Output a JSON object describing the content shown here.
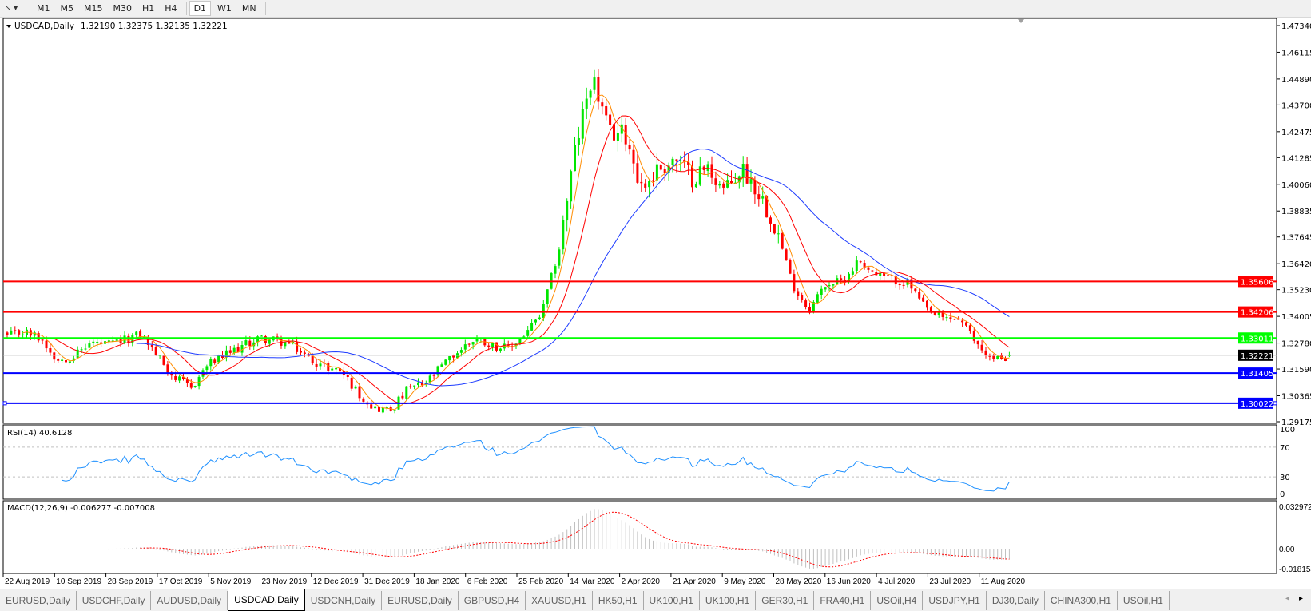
{
  "toolbar": {
    "timeframes": [
      "M1",
      "M5",
      "M15",
      "M30",
      "H1",
      "H4",
      "D1",
      "W1",
      "MN"
    ],
    "active": "D1",
    "icons": [
      "drawing-cursor-icon",
      "dropdown-arrow-icon"
    ]
  },
  "chart_data": {
    "type": "candlestick",
    "symbol_header": "USDCAD,Daily",
    "ohlc_header": "1.32190 1.32375 1.32135 1.32221",
    "last_ohlc": {
      "open": 1.3219,
      "high": 1.32375,
      "low": 1.32135,
      "close": 1.32221
    },
    "closes_sampled": [
      1.331,
      1.333,
      1.33,
      1.32,
      1.322,
      1.328,
      1.327,
      1.329,
      1.332,
      1.322,
      1.312,
      1.307,
      1.318,
      1.322,
      1.326,
      1.33,
      1.329,
      1.327,
      1.321,
      1.317,
      1.315,
      1.305,
      1.298,
      1.297,
      1.307,
      1.309,
      1.317,
      1.324,
      1.33,
      1.327,
      1.325,
      1.332,
      1.341,
      1.37,
      1.416,
      1.451,
      1.424,
      1.424,
      1.399,
      1.408,
      1.412,
      1.404,
      1.408,
      1.397,
      1.408,
      1.397,
      1.382,
      1.355,
      1.343,
      1.355,
      1.356,
      1.366,
      1.359,
      1.357,
      1.355,
      1.343,
      1.339,
      1.339,
      1.328,
      1.32,
      1.3222
    ],
    "colors": {
      "bull": "#00e600",
      "bear": "#ff0000",
      "ma_fast": "#ff8c00",
      "ma_mid": "#ff0000",
      "ma_slow": "#1e3cff",
      "rsi": "#1e90ff",
      "macd_hist": "#c0c0c0",
      "macd_signal": "#ff0000"
    },
    "price_axis": {
      "range": [
        1.29175,
        1.4734
      ],
      "ticks": [
        "1.47340",
        "1.46115",
        "1.44890",
        "1.43700",
        "1.42475",
        "1.41285",
        "1.40060",
        "1.38835",
        "1.37645",
        "1.36420",
        "1.35230",
        "1.34005",
        "1.32780",
        "1.31590",
        "1.30365",
        "1.29175"
      ]
    },
    "levels": [
      {
        "price": "1.35606",
        "color": "#ff0000",
        "text_color": "#ffffff"
      },
      {
        "price": "1.34206",
        "color": "#ff0000",
        "text_color": "#ffffff"
      },
      {
        "price": "1.33011",
        "color": "#00ff00",
        "text_color": "#ffffff"
      },
      {
        "price": "1.31405",
        "color": "#0000ff",
        "text_color": "#ffffff"
      },
      {
        "price": "1.30022",
        "color": "#0000ff",
        "text_color": "#ffffff"
      }
    ],
    "bid_line": {
      "price": "1.32221",
      "color": "#c0c0c0",
      "label_bg": "#000000"
    },
    "date_labels": [
      "22 Aug 2019",
      "10 Sep 2019",
      "28 Sep 2019",
      "17 Oct 2019",
      "5 Nov 2019",
      "23 Nov 2019",
      "12 Dec 2019",
      "31 Dec 2019",
      "18 Jan 2020",
      "6 Feb 2020",
      "25 Feb 2020",
      "14 Mar 2020",
      "2 Apr 2020",
      "21 Apr 2020",
      "9 May 2020",
      "28 May 2020",
      "16 Jun 2020",
      "4 Jul 2020",
      "23 Jul 2020",
      "11 Aug 2020"
    ],
    "rsi": {
      "label": "RSI(14) 40.6128",
      "ticks": [
        "100",
        "70",
        "30",
        "0"
      ],
      "levels": [
        70,
        30
      ]
    },
    "macd": {
      "label": "MACD(12,26,9) -0.006277 -0.007008",
      "ticks": [
        "0.032972",
        "0.00",
        "-0.018154"
      ],
      "range": [
        -0.018154,
        0.032972
      ]
    }
  },
  "tabs": [
    "EURUSD,Daily",
    "USDCHF,Daily",
    "AUDUSD,Daily",
    "USDCAD,Daily",
    "USDCNH,Daily",
    "EURUSD,Daily",
    "GBPUSD,H4",
    "XAUUSD,H1",
    "HK50,H1",
    "UK100,H1",
    "UK100,H1",
    "GER30,H1",
    "FRA40,H1",
    "USOil,H4",
    "USDJPY,H1",
    "DJ30,Daily",
    "CHINA300,H1",
    "USOil,H1"
  ],
  "active_tab": "USDCAD,Daily"
}
